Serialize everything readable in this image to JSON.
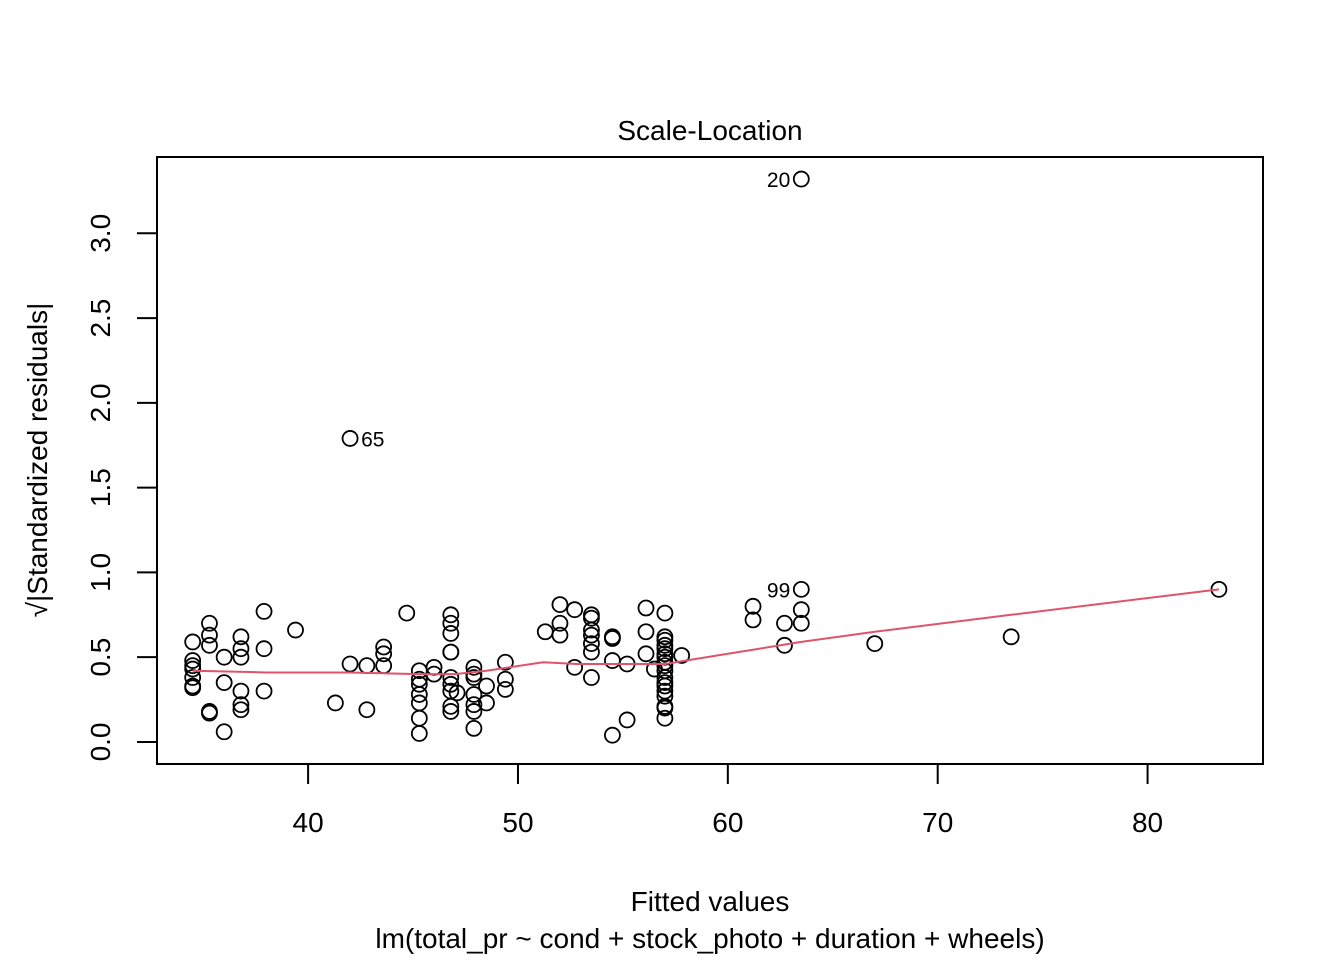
{
  "chart_data": {
    "type": "scatter",
    "title": "Scale-Location",
    "xlabel": "Fitted values",
    "subtitle": "lm(total_pr ~ cond + stock_photo + duration + wheels)",
    "ylabel": "√|Standardized residuals|",
    "xlim": [
      32.8,
      85.5
    ],
    "ylim": [
      -0.13,
      3.45
    ],
    "xticks": [
      40,
      50,
      60,
      70,
      80
    ],
    "xtick_labels": [
      "40",
      "50",
      "60",
      "70",
      "80"
    ],
    "yticks": [
      0,
      0.5,
      1,
      1.5,
      2,
      2.5,
      3
    ],
    "ytick_labels": [
      "0.0",
      "0.5",
      "1.0",
      "1.5",
      "2.0",
      "2.5",
      "3.0"
    ],
    "grid": false,
    "colors": {
      "points": "#000000",
      "smoother": "#DF536B"
    },
    "points": [
      [
        34.5,
        0.59
      ],
      [
        34.5,
        0.48
      ],
      [
        34.5,
        0.45
      ],
      [
        34.5,
        0.43
      ],
      [
        34.5,
        0.38
      ],
      [
        34.5,
        0.33
      ],
      [
        34.5,
        0.32
      ],
      [
        35.3,
        0.7
      ],
      [
        35.3,
        0.63
      ],
      [
        35.3,
        0.57
      ],
      [
        35.3,
        0.18
      ],
      [
        35.3,
        0.17
      ],
      [
        36.0,
        0.5
      ],
      [
        36.0,
        0.35
      ],
      [
        36.0,
        0.06
      ],
      [
        36.8,
        0.62
      ],
      [
        36.8,
        0.55
      ],
      [
        36.8,
        0.5
      ],
      [
        36.8,
        0.3
      ],
      [
        36.8,
        0.22
      ],
      [
        36.8,
        0.19
      ],
      [
        37.9,
        0.77
      ],
      [
        37.9,
        0.55
      ],
      [
        37.9,
        0.3
      ],
      [
        39.4,
        0.66
      ],
      [
        41.3,
        0.23
      ],
      [
        42.0,
        1.79
      ],
      [
        42.0,
        0.46
      ],
      [
        42.8,
        0.45
      ],
      [
        42.8,
        0.19
      ],
      [
        43.6,
        0.56
      ],
      [
        43.6,
        0.52
      ],
      [
        43.6,
        0.45
      ],
      [
        44.7,
        0.76
      ],
      [
        45.3,
        0.42
      ],
      [
        45.3,
        0.37
      ],
      [
        45.3,
        0.34
      ],
      [
        45.3,
        0.28
      ],
      [
        45.3,
        0.23
      ],
      [
        45.3,
        0.14
      ],
      [
        45.3,
        0.05
      ],
      [
        46.0,
        0.44
      ],
      [
        46.0,
        0.4
      ],
      [
        46.8,
        0.75
      ],
      [
        46.8,
        0.7
      ],
      [
        46.8,
        0.64
      ],
      [
        46.8,
        0.53
      ],
      [
        46.8,
        0.53
      ],
      [
        46.8,
        0.38
      ],
      [
        46.8,
        0.34
      ],
      [
        46.8,
        0.3
      ],
      [
        46.8,
        0.21
      ],
      [
        46.8,
        0.18
      ],
      [
        47.1,
        0.29
      ],
      [
        47.9,
        0.44
      ],
      [
        47.9,
        0.4
      ],
      [
        47.9,
        0.38
      ],
      [
        47.9,
        0.28
      ],
      [
        47.9,
        0.22
      ],
      [
        47.9,
        0.18
      ],
      [
        47.9,
        0.08
      ],
      [
        48.5,
        0.33
      ],
      [
        48.5,
        0.23
      ],
      [
        49.4,
        0.47
      ],
      [
        49.4,
        0.37
      ],
      [
        49.4,
        0.31
      ],
      [
        51.3,
        0.65
      ],
      [
        52.0,
        0.81
      ],
      [
        52.0,
        0.7
      ],
      [
        52.0,
        0.63
      ],
      [
        52.7,
        0.78
      ],
      [
        52.7,
        0.44
      ],
      [
        53.5,
        0.75
      ],
      [
        53.5,
        0.73
      ],
      [
        53.5,
        0.66
      ],
      [
        53.5,
        0.63
      ],
      [
        53.5,
        0.58
      ],
      [
        53.5,
        0.53
      ],
      [
        53.5,
        0.38
      ],
      [
        54.5,
        0.62
      ],
      [
        54.5,
        0.61
      ],
      [
        54.5,
        0.48
      ],
      [
        54.5,
        0.04
      ],
      [
        55.2,
        0.46
      ],
      [
        55.2,
        0.13
      ],
      [
        56.1,
        0.79
      ],
      [
        56.1,
        0.65
      ],
      [
        56.1,
        0.52
      ],
      [
        56.5,
        0.43
      ],
      [
        57.0,
        0.76
      ],
      [
        57.0,
        0.62
      ],
      [
        57.0,
        0.6
      ],
      [
        57.0,
        0.57
      ],
      [
        57.0,
        0.55
      ],
      [
        57.0,
        0.52
      ],
      [
        57.0,
        0.5
      ],
      [
        57.0,
        0.47
      ],
      [
        57.0,
        0.45
      ],
      [
        57.0,
        0.42
      ],
      [
        57.0,
        0.38
      ],
      [
        57.0,
        0.35
      ],
      [
        57.0,
        0.33
      ],
      [
        57.0,
        0.3
      ],
      [
        57.0,
        0.27
      ],
      [
        57.0,
        0.21
      ],
      [
        57.0,
        0.2
      ],
      [
        57.0,
        0.14
      ],
      [
        57.8,
        0.51
      ],
      [
        61.2,
        0.8
      ],
      [
        61.2,
        0.72
      ],
      [
        62.7,
        0.7
      ],
      [
        62.7,
        0.57
      ],
      [
        63.5,
        3.32
      ],
      [
        63.5,
        0.9
      ],
      [
        63.5,
        0.78
      ],
      [
        63.5,
        0.7
      ],
      [
        67.0,
        0.58
      ],
      [
        73.5,
        0.62
      ],
      [
        83.4,
        0.9
      ]
    ],
    "smoother": [
      [
        34.5,
        0.42
      ],
      [
        38.0,
        0.41
      ],
      [
        42.0,
        0.41
      ],
      [
        45.3,
        0.4
      ],
      [
        47.0,
        0.4
      ],
      [
        48.5,
        0.42
      ],
      [
        51.2,
        0.47
      ],
      [
        52.8,
        0.46
      ],
      [
        54.5,
        0.46
      ],
      [
        57.0,
        0.46
      ],
      [
        60.0,
        0.52
      ],
      [
        63.5,
        0.59
      ],
      [
        67.0,
        0.65
      ],
      [
        73.5,
        0.75
      ],
      [
        83.4,
        0.9
      ]
    ],
    "annotations": [
      {
        "label": "20",
        "x": 63.5,
        "y": 3.32,
        "side": "left"
      },
      {
        "label": "65",
        "x": 42.0,
        "y": 1.79,
        "side": "right"
      },
      {
        "label": "99",
        "x": 63.5,
        "y": 0.9,
        "side": "left"
      }
    ]
  }
}
